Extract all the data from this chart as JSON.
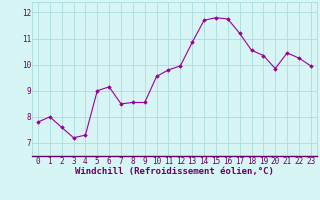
{
  "x": [
    0,
    1,
    2,
    3,
    4,
    5,
    6,
    7,
    8,
    9,
    10,
    11,
    12,
    13,
    14,
    15,
    16,
    17,
    18,
    19,
    20,
    21,
    22,
    23
  ],
  "y": [
    7.8,
    8.0,
    7.6,
    7.2,
    7.3,
    9.0,
    9.15,
    8.5,
    8.55,
    8.55,
    9.55,
    9.8,
    9.95,
    10.85,
    11.7,
    11.8,
    11.75,
    11.2,
    10.55,
    10.35,
    9.85,
    10.45,
    10.25,
    9.95
  ],
  "line_color": "#990099",
  "marker": "D",
  "marker_size": 1.8,
  "line_width": 0.8,
  "bg_color": "#d8f5f5",
  "grid_color": "#aadddd",
  "xlabel": "Windchill (Refroidissement éolien,°C)",
  "xlabel_color": "#660066",
  "xlabel_fontsize": 6.5,
  "tick_color": "#660066",
  "tick_fontsize": 5.5,
  "ylim": [
    6.5,
    12.4
  ],
  "yticks": [
    7,
    8,
    9,
    10,
    11,
    12
  ],
  "ytick_labels": [
    "7",
    "8",
    "9",
    "10",
    "11",
    "12"
  ],
  "xlim": [
    -0.5,
    23.5
  ],
  "xticks": [
    0,
    1,
    2,
    3,
    4,
    5,
    6,
    7,
    8,
    9,
    10,
    11,
    12,
    13,
    14,
    15,
    16,
    17,
    18,
    19,
    20,
    21,
    22,
    23
  ]
}
